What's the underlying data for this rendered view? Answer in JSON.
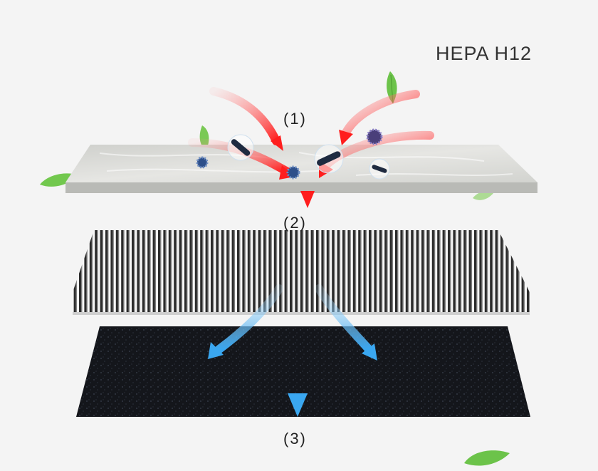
{
  "brand_label": "HEPA H12",
  "steps": [
    "(1)",
    "(2)",
    "(3)"
  ],
  "colors": {
    "background": "#f4f4f4",
    "prefilter": "#d9dad7",
    "pleat": "#2a2a2a",
    "carbon": "#15171c",
    "incoming_arrow": "#ff2a2a",
    "outgoing_arrow": "#4fb0f0",
    "leaf": "#6cc34a",
    "particle": "#2d4f8a"
  },
  "icons": [
    "leaf-icon",
    "virus-particle-icon",
    "bacteria-particle-icon",
    "airflow-arrow-icon"
  ]
}
